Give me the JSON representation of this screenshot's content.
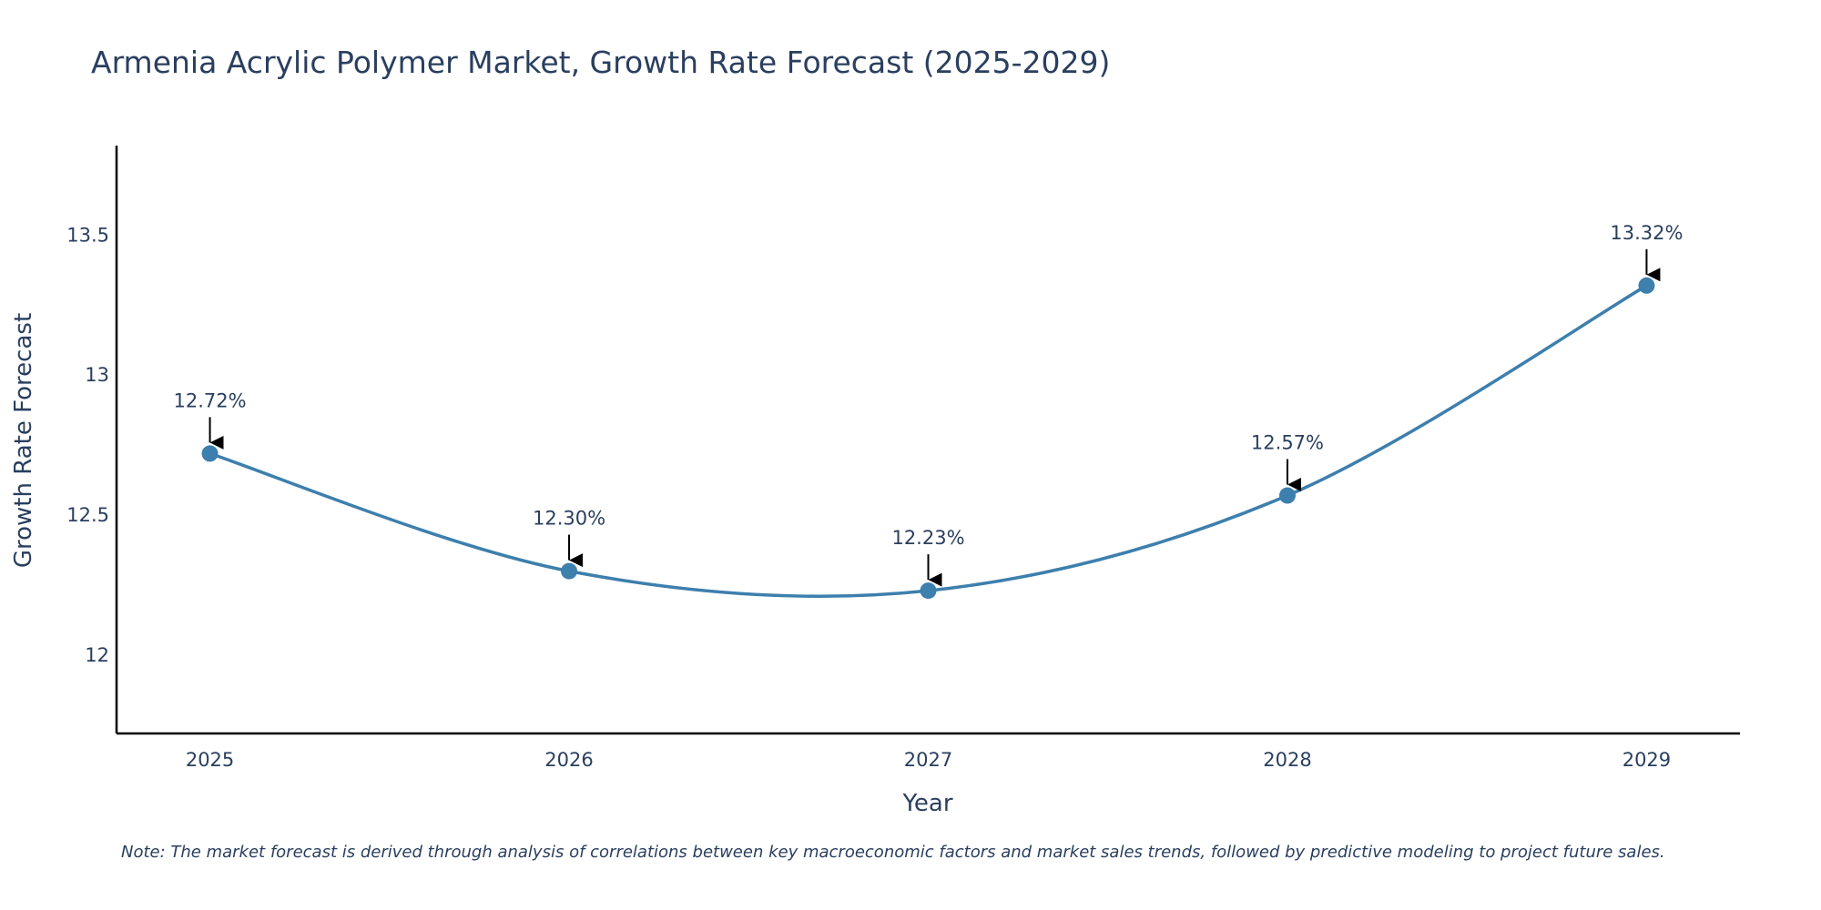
{
  "chart_data": {
    "type": "line",
    "title": "Armenia Acrylic Polymer Market, Growth Rate Forecast (2025-2029)",
    "xlabel": "Year",
    "ylabel": "Growth Rate Forecast",
    "x": [
      "2025",
      "2026",
      "2027",
      "2028",
      "2029"
    ],
    "series": [
      {
        "name": "Growth Rate Forecast",
        "values": [
          12.72,
          12.3,
          12.23,
          12.57,
          13.32
        ],
        "labels": [
          "12.72%",
          "12.30%",
          "12.23%",
          "12.57%",
          "13.32%"
        ]
      }
    ],
    "ylim": [
      11.72,
      13.82
    ],
    "yticks": [
      12,
      12.5,
      13,
      13.5
    ],
    "ytick_labels": [
      "12",
      "12.5",
      "13",
      "13.5"
    ],
    "xlim": [
      -0.26,
      4.26
    ],
    "grid": false,
    "line_shape": "spline",
    "annotations_style": "arrow",
    "note": "Note: The market forecast is derived through analysis of correlations between key macroeconomic factors and market sales trends, followed by predictive modeling to project future sales."
  },
  "colors": {
    "line": "#3d7fad",
    "marker": "#3d7fad",
    "axis": "#000000",
    "text": "#2a3f5f"
  }
}
